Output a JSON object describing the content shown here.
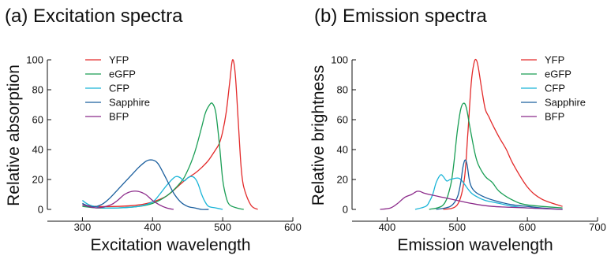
{
  "chart_data": [
    {
      "type": "line",
      "title": "(a) Excitation spectra",
      "xlabel": "Excitation wavelength",
      "ylabel": "Relative absorption",
      "xlim": [
        250,
        600
      ],
      "ylim": [
        0,
        100
      ],
      "xticks": [
        300,
        400,
        500,
        600
      ],
      "yticks": [
        0,
        20,
        40,
        60,
        80,
        100
      ],
      "legend": "top-center",
      "grid": false,
      "series": [
        {
          "name": "YFP",
          "color": "#e32a2a",
          "x": [
            300,
            320,
            350,
            380,
            400,
            420,
            440,
            450,
            460,
            470,
            480,
            490,
            495,
            500,
            505,
            510,
            514,
            518,
            522,
            526,
            530,
            540,
            550
          ],
          "y": [
            3,
            2,
            2,
            3,
            5,
            9,
            17,
            21,
            24,
            28,
            33,
            40,
            44,
            52,
            65,
            85,
            100,
            90,
            60,
            30,
            15,
            3,
            0
          ]
        },
        {
          "name": "eGFP",
          "color": "#1a9e55",
          "x": [
            300,
            320,
            350,
            380,
            400,
            420,
            440,
            450,
            460,
            470,
            475,
            480,
            485,
            490,
            495,
            500,
            505,
            510,
            520,
            530
          ],
          "y": [
            2,
            1,
            1,
            2,
            4,
            9,
            18,
            26,
            38,
            55,
            64,
            69,
            71,
            65,
            45,
            20,
            8,
            3,
            1,
            0
          ]
        },
        {
          "name": "CFP",
          "color": "#1bb5d8",
          "x": [
            300,
            310,
            330,
            350,
            380,
            400,
            410,
            420,
            430,
            435,
            440,
            445,
            450,
            455,
            460,
            465,
            470,
            475,
            480,
            490,
            500
          ],
          "y": [
            6,
            3,
            1,
            1,
            2,
            5,
            10,
            16,
            21,
            22,
            21,
            19,
            21,
            22,
            21,
            17,
            10,
            5,
            2,
            1,
            0
          ]
        },
        {
          "name": "Sapphire",
          "color": "#1b5f9e",
          "x": [
            300,
            310,
            320,
            330,
            340,
            350,
            360,
            370,
            380,
            390,
            395,
            400,
            405,
            410,
            420,
            430,
            440,
            450,
            460,
            470,
            480
          ],
          "y": [
            4,
            2,
            2,
            4,
            8,
            13,
            18,
            23,
            28,
            32,
            33,
            33,
            32,
            29,
            20,
            11,
            5,
            2,
            1,
            0,
            0
          ]
        },
        {
          "name": "BFP",
          "color": "#8b2a8a",
          "x": [
            300,
            320,
            340,
            350,
            360,
            370,
            380,
            390,
            400,
            410,
            420,
            430
          ],
          "y": [
            3,
            1,
            3,
            6,
            10,
            12,
            12,
            10,
            6,
            3,
            1,
            0
          ]
        }
      ]
    },
    {
      "type": "line",
      "title": "(b) Emission spectra",
      "xlabel": "Emission wavelength",
      "ylabel": "Relative brightness",
      "xlim": [
        350,
        700
      ],
      "ylim": [
        0,
        100
      ],
      "xticks": [
        400,
        500,
        600,
        700
      ],
      "yticks": [
        0,
        20,
        40,
        60,
        80,
        100
      ],
      "legend": "top-right",
      "grid": false,
      "series": [
        {
          "name": "YFP",
          "color": "#e32a2a",
          "x": [
            480,
            500,
            510,
            515,
            520,
            524,
            527,
            530,
            535,
            540,
            545,
            550,
            560,
            570,
            580,
            600,
            620,
            650
          ],
          "y": [
            0,
            3,
            20,
            50,
            85,
            98,
            100,
            95,
            80,
            67,
            62,
            57,
            48,
            40,
            30,
            15,
            7,
            2
          ]
        },
        {
          "name": "eGFP",
          "color": "#1a9e55",
          "x": [
            460,
            480,
            490,
            495,
            500,
            505,
            509,
            513,
            518,
            525,
            530,
            540,
            550,
            560,
            580,
            600,
            650
          ],
          "y": [
            0,
            3,
            15,
            30,
            52,
            67,
            71,
            68,
            55,
            38,
            30,
            22,
            18,
            12,
            6,
            3,
            1
          ]
        },
        {
          "name": "CFP",
          "color": "#1bb5d8",
          "x": [
            440,
            455,
            460,
            465,
            470,
            476,
            480,
            485,
            490,
            500,
            505,
            510,
            520,
            530,
            540,
            560,
            580,
            600,
            650
          ],
          "y": [
            0,
            2,
            5,
            10,
            18,
            23,
            22,
            19,
            20,
            21,
            20,
            17,
            11,
            8,
            6,
            4,
            2,
            1,
            0
          ]
        },
        {
          "name": "Sapphire",
          "color": "#1b5f9e",
          "x": [
            470,
            490,
            500,
            505,
            508,
            511,
            514,
            518,
            525,
            540,
            560,
            580,
            600,
            620,
            650
          ],
          "y": [
            0,
            2,
            8,
            18,
            28,
            33,
            30,
            18,
            12,
            8,
            5,
            3,
            2,
            1,
            0
          ]
        },
        {
          "name": "BFP",
          "color": "#8b2a8a",
          "x": [
            390,
            405,
            415,
            425,
            435,
            442,
            447,
            452,
            460,
            470,
            480,
            500,
            520,
            550,
            600,
            650
          ],
          "y": [
            0,
            1,
            4,
            8,
            10,
            12,
            12,
            11,
            10,
            9,
            8,
            6,
            4,
            2,
            1,
            0
          ]
        }
      ]
    }
  ]
}
